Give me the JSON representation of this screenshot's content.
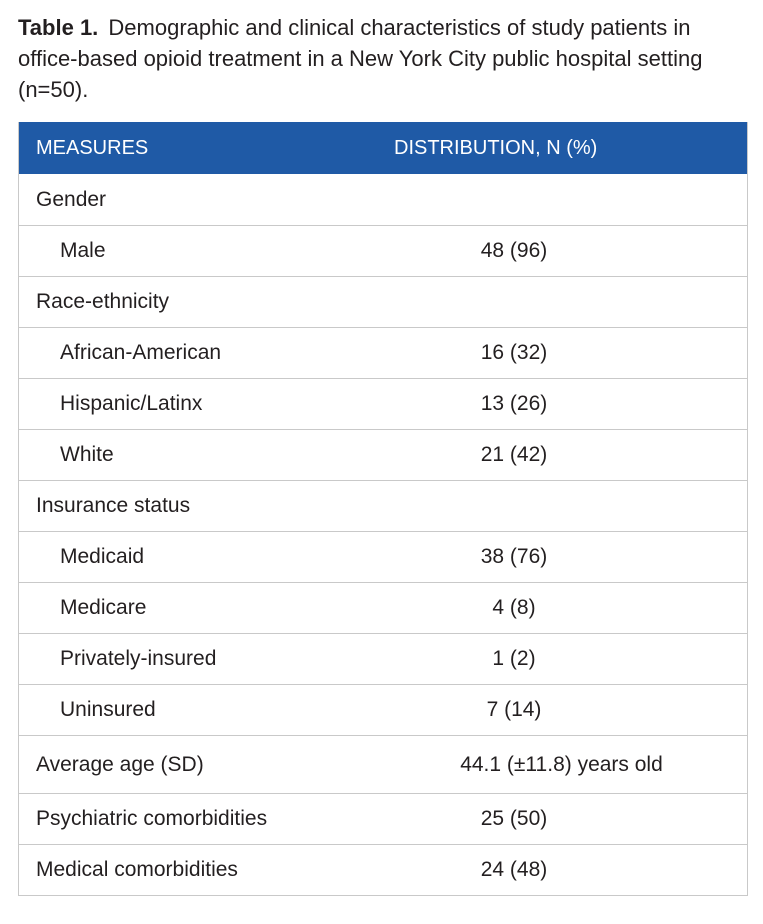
{
  "caption": {
    "label": "Table 1.",
    "text": "Demographic and clinical characteristics of study patients in office-based opioid treatment in a New York City public hospital setting (n=50)."
  },
  "table": {
    "headers": [
      "MEASURES",
      "DISTRIBUTION, N (%)"
    ],
    "rows": [
      {
        "measure": "Gender",
        "value": "",
        "indent": false
      },
      {
        "measure": "Male",
        "value": "48 (96)",
        "indent": true
      },
      {
        "measure": "Race-ethnicity",
        "value": "",
        "indent": false
      },
      {
        "measure": "African-American",
        "value": "16 (32)",
        "indent": true
      },
      {
        "measure": "Hispanic/Latinx",
        "value": "13 (26)",
        "indent": true
      },
      {
        "measure": "White",
        "value": "21 (42)",
        "indent": true
      },
      {
        "measure": "Insurance status",
        "value": "",
        "indent": false
      },
      {
        "measure": "Medicaid",
        "value": "38 (76)",
        "indent": true
      },
      {
        "measure": "Medicare",
        "value": "4 (8)",
        "indent": true
      },
      {
        "measure": "Privately-insured",
        "value": "1 (2)",
        "indent": true
      },
      {
        "measure": "Uninsured",
        "value": "7 (14)",
        "indent": true
      },
      {
        "measure": "Average age (SD)",
        "value": "44.1 (±11.8) years old",
        "indent": false
      },
      {
        "measure": "Psychiatric comorbidities",
        "value": "25 (50)",
        "indent": false
      },
      {
        "measure": "Medical comorbidities",
        "value": "24 (48)",
        "indent": false
      }
    ]
  }
}
